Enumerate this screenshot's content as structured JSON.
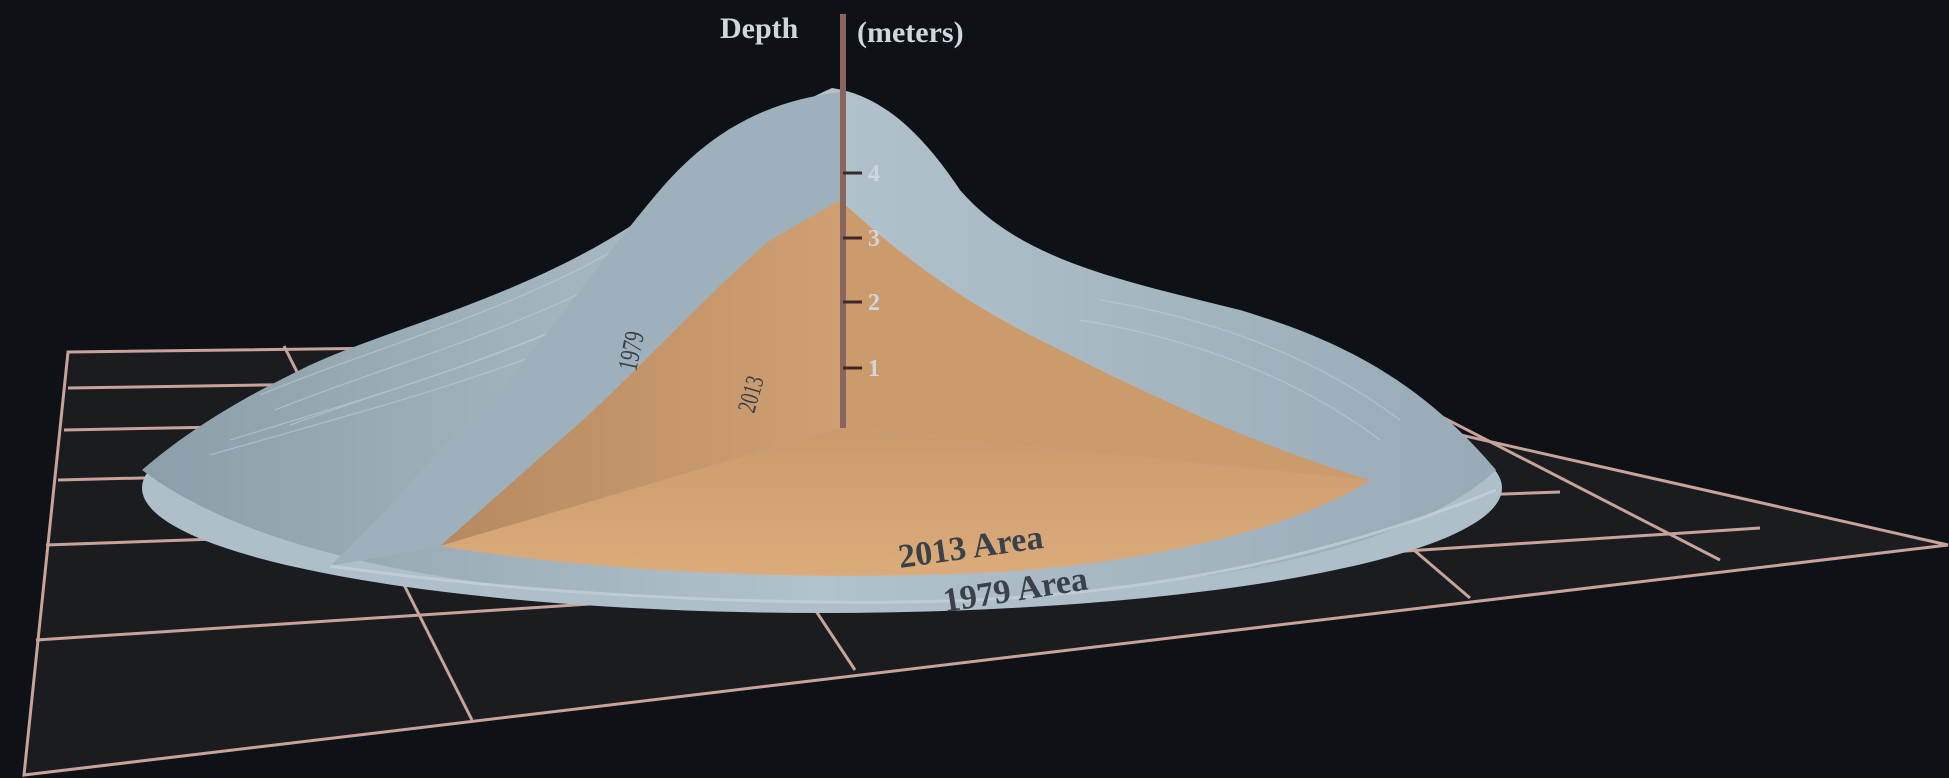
{
  "axis": {
    "title_word": "Depth",
    "title_unit": "(meters)",
    "ticks": [
      "1",
      "2",
      "3",
      "4"
    ]
  },
  "labels": {
    "profile_1979": "1979",
    "profile_2013": "2013",
    "area_2013": "2013 Area",
    "area_1979": "1979 Area"
  },
  "colors": {
    "background": "#0e1116",
    "grid": "#c8a39a",
    "ice_1979": "#a9bcc8",
    "ice_2013": "#d4a272",
    "axis": "#8a6560"
  }
}
